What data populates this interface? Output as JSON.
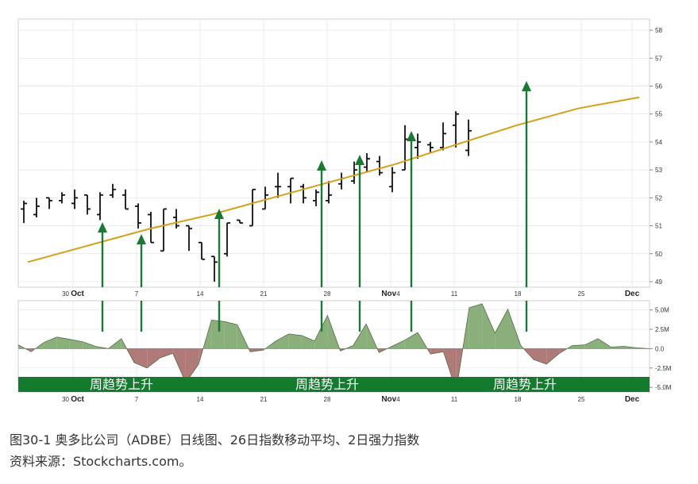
{
  "caption": {
    "line1": "图30-1   奥多比公司（ADBE）日线图、26日指数移动平均、2日强力指数",
    "line2": "资料来源：Stockcharts.com。"
  },
  "band_labels": [
    "周趋势上升",
    "周趋势上升",
    "周趋势上升"
  ],
  "colors": {
    "bars": "#111111",
    "ema": "#d4a017",
    "arrow": "#1a7a34",
    "band": "#137a2e",
    "force_positive": "#8aaf7a",
    "force_negative": "#b07a78",
    "grid": "#e2e2e2"
  },
  "chart_data": [
    {
      "type": "ohlc",
      "overlay": "ema",
      "x_tick_labels": [
        {
          "label": "30",
          "bold_suffix": "Oct",
          "day": 4
        },
        {
          "label": "7",
          "day": 9
        },
        {
          "label": "14",
          "day": 14
        },
        {
          "label": "21",
          "day": 19
        },
        {
          "label": "28",
          "day": 24
        },
        {
          "label": "4",
          "bold_prefix": "Nov",
          "day": 29
        },
        {
          "label": "11",
          "day": 34
        },
        {
          "label": "18",
          "day": 39
        },
        {
          "label": "25",
          "day": 44
        },
        {
          "label": "Dec",
          "bold": true,
          "day": 48
        }
      ],
      "y_tick_labels": [
        "58",
        "57",
        "56",
        "55",
        "54",
        "53",
        "52",
        "51",
        "50",
        "49"
      ],
      "ylim": [
        48.8,
        58.4
      ],
      "day_count": 50,
      "ohlc": [
        [
          51.6,
          51.9,
          51.1,
          51.8
        ],
        [
          51.4,
          52.0,
          51.3,
          51.7
        ],
        [
          52.0,
          52.0,
          51.6,
          51.9
        ],
        [
          51.9,
          52.2,
          51.8,
          52.1
        ],
        [
          51.8,
          52.3,
          51.6,
          52.0
        ],
        [
          52.1,
          52.1,
          51.4,
          51.6
        ],
        [
          51.4,
          52.2,
          51.2,
          52.1
        ],
        [
          52.1,
          52.5,
          52.0,
          52.3
        ],
        [
          52.1,
          52.3,
          51.6,
          51.6
        ],
        [
          51.7,
          51.8,
          50.9,
          51.1
        ],
        [
          51.4,
          51.5,
          50.4,
          50.4
        ],
        [
          50.1,
          51.6,
          50.1,
          51.6
        ],
        [
          51.3,
          51.6,
          50.9,
          51.0
        ],
        [
          51.0,
          51.0,
          50.1,
          50.9
        ],
        [
          50.4,
          50.4,
          49.8,
          49.8
        ],
        [
          49.9,
          49.9,
          49.0,
          49.7
        ],
        [
          50.0,
          51.1,
          49.9,
          51.1
        ],
        [
          51.2,
          51.2,
          51.1,
          51.1
        ],
        [
          51.0,
          52.3,
          51.0,
          52.3
        ],
        [
          51.6,
          52.4,
          51.6,
          52.1
        ],
        [
          52.4,
          52.9,
          52.0,
          52.4
        ],
        [
          52.4,
          52.7,
          51.8,
          52.7
        ],
        [
          52.4,
          52.5,
          51.8,
          52.0
        ],
        [
          51.9,
          52.3,
          51.7,
          52.2
        ],
        [
          51.9,
          52.6,
          51.8,
          52.1
        ],
        [
          52.5,
          52.9,
          52.3,
          52.7
        ],
        [
          52.6,
          53.3,
          52.5,
          53.0
        ],
        [
          53.1,
          53.6,
          52.9,
          53.4
        ],
        [
          53.3,
          53.5,
          52.8,
          52.9
        ],
        [
          52.4,
          53.1,
          52.2,
          52.9
        ],
        [
          53.0,
          54.6,
          53.0,
          54.1
        ],
        [
          53.8,
          54.3,
          53.4,
          54.0
        ],
        [
          53.9,
          54.0,
          53.6,
          53.8
        ],
        [
          53.8,
          54.7,
          53.7,
          54.3
        ],
        [
          54.6,
          55.1,
          53.8,
          55.0
        ],
        [
          53.7,
          54.8,
          53.5,
          54.4
        ]
      ],
      "ema": [
        49.7,
        50.3,
        50.9,
        51.4,
        52.0,
        52.6,
        53.2,
        53.9,
        54.6,
        55.2,
        55.6
      ]
    },
    {
      "type": "area",
      "title": "",
      "y_tick_labels": [
        "5.0M",
        "2.5M",
        "0.0",
        "-2.5M",
        "-5.0M"
      ],
      "ylim": [
        -5.6,
        6.2
      ],
      "x": [
        0,
        1,
        2,
        3,
        4,
        5,
        6,
        7,
        8,
        9,
        10,
        11,
        12,
        13,
        14,
        15,
        16,
        17,
        18,
        19,
        20,
        21,
        22,
        23,
        24,
        25,
        26,
        27,
        28,
        29,
        30,
        31,
        32,
        33,
        34,
        35,
        36,
        37,
        38,
        39,
        40,
        41,
        42,
        43,
        44,
        45,
        46,
        47,
        48,
        49
      ],
      "values": [
        0.5,
        -0.4,
        0.8,
        1.5,
        1.2,
        0.9,
        0.3,
        0.0,
        1.3,
        -1.8,
        -2.5,
        -1.2,
        -0.6,
        -4.4,
        -2.0,
        3.7,
        3.5,
        3.1,
        -0.4,
        -0.2,
        1.0,
        1.9,
        1.7,
        1.0,
        4.3,
        -0.3,
        0.4,
        3.2,
        -0.5,
        0.3,
        1.1,
        2.1,
        -0.7,
        -0.4,
        -5.4,
        5.3,
        5.8,
        2.0,
        5.1,
        0.4,
        -1.4,
        -2.0,
        -0.6,
        0.4,
        0.5,
        1.3,
        0.2,
        0.3,
        0.1,
        0.0
      ]
    }
  ]
}
